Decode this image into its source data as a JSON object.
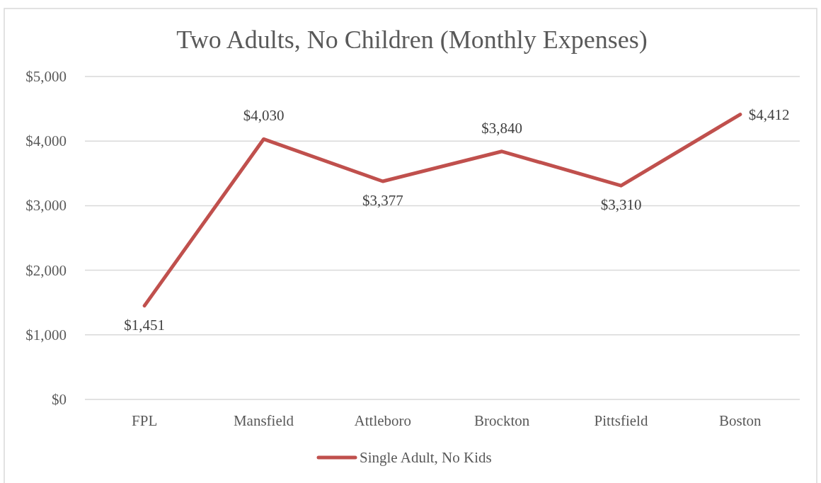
{
  "chart_data": {
    "type": "line",
    "title": "Two Adults, No Children (Monthly Expenses)",
    "categories": [
      "FPL",
      "Mansfield",
      "Attleboro",
      "Brockton",
      "Pittsfield",
      "Boston"
    ],
    "series": [
      {
        "name": "Single Adult, No Kids",
        "color": "#c0504d",
        "values": [
          1451,
          4030,
          3377,
          3840,
          3310,
          4412
        ],
        "value_labels": [
          "$1,451",
          "$4,030",
          "$3,377",
          "$3,840",
          "$3,310",
          "$4,412"
        ]
      }
    ],
    "ylim": [
      0,
      5000
    ],
    "yticks": [
      {
        "value": 0,
        "label": "$0"
      },
      {
        "value": 1000,
        "label": "$1,000"
      },
      {
        "value": 2000,
        "label": "$2,000"
      },
      {
        "value": 3000,
        "label": "$3,000"
      },
      {
        "value": 4000,
        "label": "$4,000"
      },
      {
        "value": 5000,
        "label": "$5,000"
      }
    ],
    "grid": "y",
    "legend": "bottom",
    "marker": "none",
    "line_style": "solid"
  }
}
